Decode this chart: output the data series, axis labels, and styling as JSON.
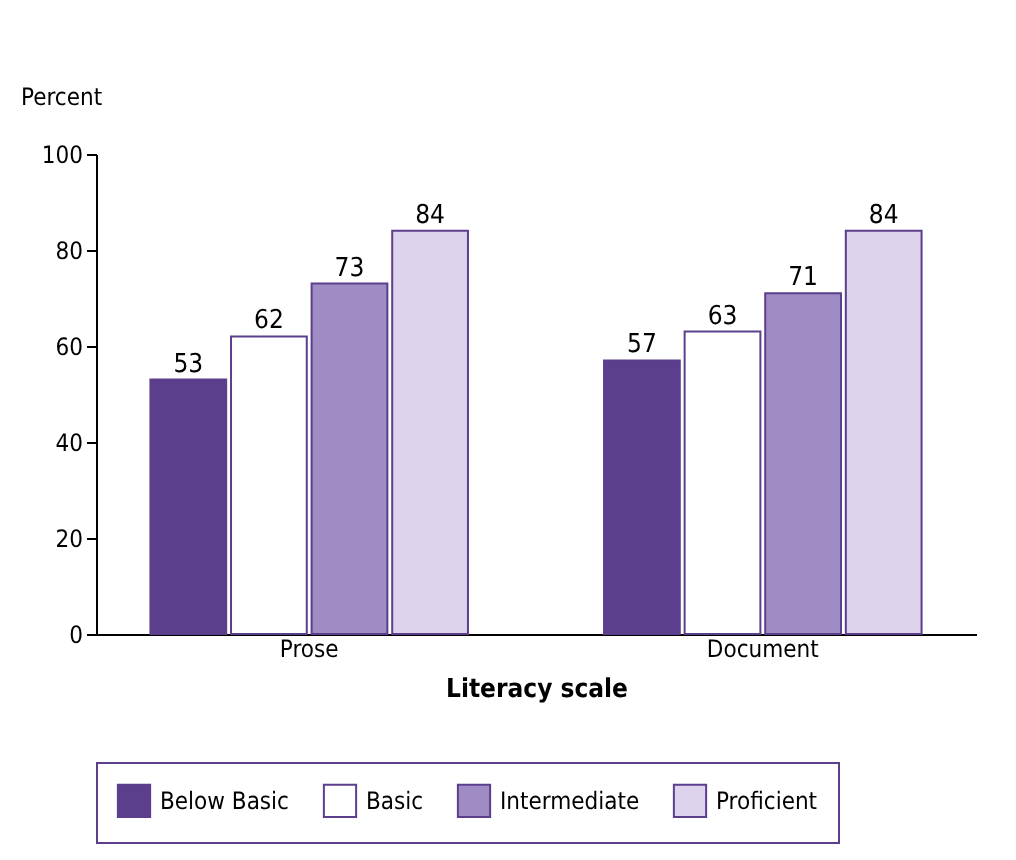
{
  "chart_data": {
    "type": "bar",
    "ylabel": "Percent",
    "xlabel": "Literacy scale",
    "categories": [
      "Prose",
      "Document"
    ],
    "series": [
      {
        "name": "Below Basic",
        "color": "#5b3f8c",
        "values": [
          53,
          57
        ]
      },
      {
        "name": "Basic",
        "color": "#ffffff",
        "values": [
          62,
          63
        ]
      },
      {
        "name": "Intermediate",
        "color": "#a08cc4",
        "values": [
          73,
          71
        ]
      },
      {
        "name": "Proficient",
        "color": "#ddd3ec",
        "values": [
          84,
          84
        ]
      }
    ],
    "ylim": [
      0,
      100
    ],
    "yticks": [
      0,
      20,
      40,
      60,
      80,
      100
    ],
    "data_labels": true,
    "legend": "bottom",
    "grid": false
  }
}
